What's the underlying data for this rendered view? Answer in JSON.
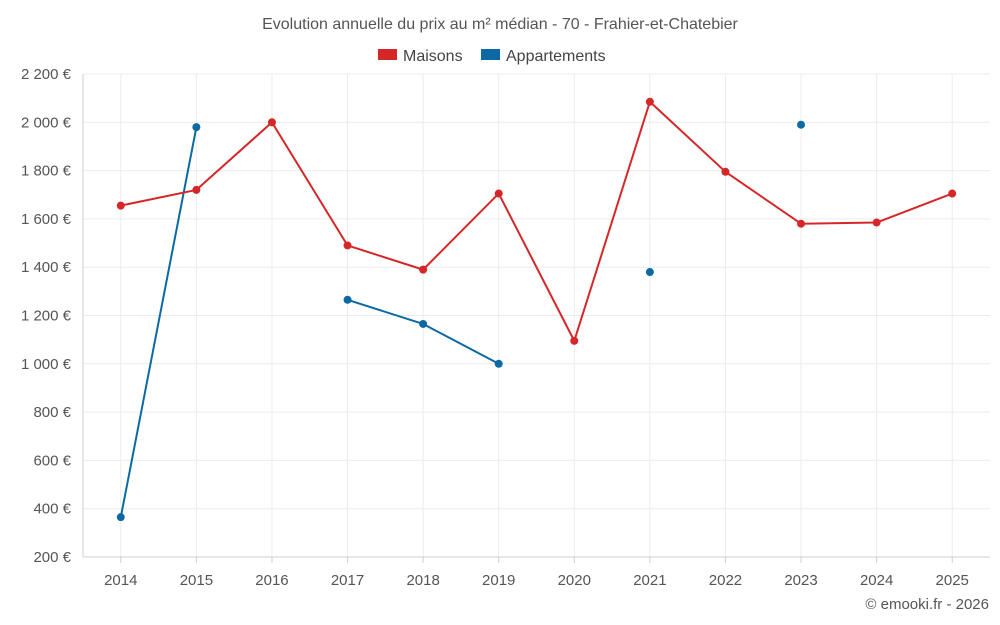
{
  "chart_data": {
    "type": "line",
    "title": "Evolution annuelle du prix au m² médian - 70 - Frahier-et-Chatebier",
    "x": [
      "2014",
      "2015",
      "2016",
      "2017",
      "2018",
      "2019",
      "2020",
      "2021",
      "2022",
      "2023",
      "2024",
      "2025"
    ],
    "ylim": [
      200,
      2200
    ],
    "yticks": [
      200,
      400,
      600,
      800,
      1000,
      1200,
      1400,
      1600,
      1800,
      2000,
      2200
    ],
    "ytick_labels": [
      "200 €",
      "400 €",
      "600 €",
      "800 €",
      "1 000 €",
      "1 200 €",
      "1 400 €",
      "1 600 €",
      "1 800 €",
      "2 000 €",
      "2 200 €"
    ],
    "legend_position": "top-center",
    "grid": true,
    "series": [
      {
        "name": "Maisons",
        "color": "#d62728",
        "values": [
          1655,
          1720,
          2000,
          1490,
          1390,
          1705,
          1095,
          2085,
          1795,
          1580,
          1585,
          1705
        ]
      },
      {
        "name": "Appartements",
        "color": "#0b6aa3",
        "values": [
          365,
          1980,
          null,
          1265,
          1165,
          1000,
          null,
          1380,
          null,
          1990,
          null,
          null
        ]
      }
    ]
  },
  "credit": "© emooki.fr - 2026"
}
